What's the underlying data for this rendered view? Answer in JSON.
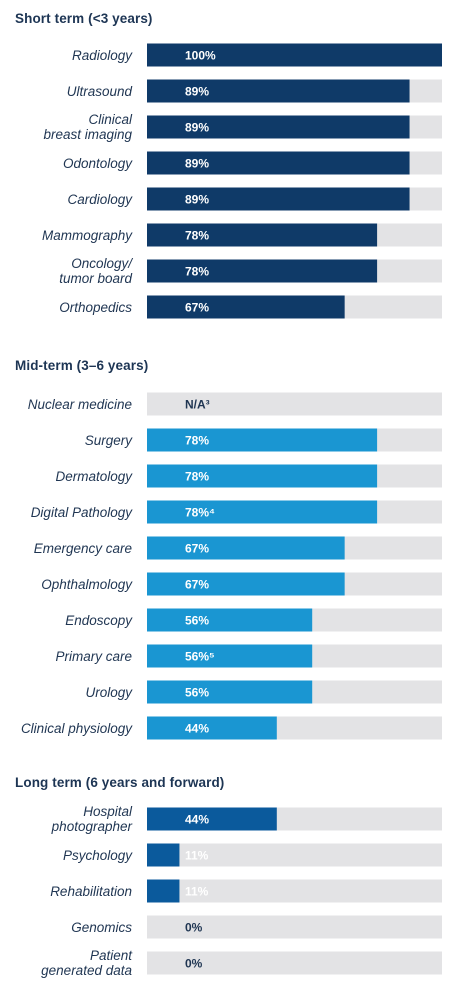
{
  "chart_data": [
    {
      "type": "bar",
      "orientation": "horizontal",
      "title": "Short term (<3 years)",
      "categories": [
        "Radiology",
        "Ultrasound",
        "Clinical breast imaging",
        "Odontology",
        "Cardiology",
        "Mammography",
        "Oncology/ tumor board",
        "Orthopedics"
      ],
      "values": [
        100,
        89,
        89,
        89,
        89,
        78,
        78,
        67
      ],
      "value_labels": [
        "100%",
        "89%",
        "89%",
        "89%",
        "89%",
        "78%",
        "78%",
        "67%"
      ],
      "xlim": [
        0,
        100
      ],
      "unit": "%",
      "bar_color": "#0f3a68"
    },
    {
      "type": "bar",
      "orientation": "horizontal",
      "title": "Mid-term (3–6 years)",
      "categories": [
        "Nuclear medicine",
        "Surgery",
        "Dermatology",
        "Digital Pathology",
        "Emergency care",
        "Ophthalmology",
        "Endoscopy",
        "Primary care",
        "Urology",
        "Clinical physiology"
      ],
      "values": [
        null,
        78,
        78,
        78,
        67,
        67,
        56,
        56,
        56,
        44
      ],
      "value_labels": [
        "N/A³",
        "78%",
        "78%",
        "78%⁴",
        "67%",
        "67%",
        "56%",
        "56%⁵",
        "56%",
        "44%"
      ],
      "xlim": [
        0,
        100
      ],
      "unit": "%",
      "bar_color": "#1a96d2"
    },
    {
      "type": "bar",
      "orientation": "horizontal",
      "title": "Long term (6 years and forward)",
      "categories": [
        "Hospital photographer",
        "Psychology",
        "Rehabilitation",
        "Genomics",
        "Patient generated data"
      ],
      "values": [
        44,
        11,
        11,
        0,
        0
      ],
      "value_labels": [
        "44%",
        "11%",
        "11%",
        "0%",
        "0%"
      ],
      "xlim": [
        0,
        100
      ],
      "unit": "%",
      "bar_color": "#0b5a9c"
    }
  ],
  "colors": {
    "track": "#e3e3e5",
    "heading_text": "#1d3554",
    "category_text": "#1f3552",
    "label_on_bar": "#ffffff",
    "label_on_track": "#1f3552"
  }
}
